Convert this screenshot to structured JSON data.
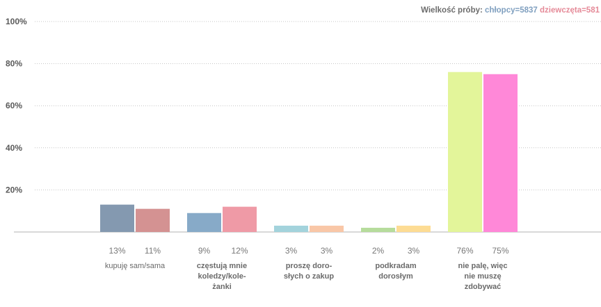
{
  "sample_note": {
    "label": "Wielkość próby:",
    "boys": "chłopcy=5837",
    "girls": "dziewczęta=581"
  },
  "chart_data": {
    "type": "bar",
    "ylim": [
      0,
      100
    ],
    "yticks": [
      "20%",
      "40%",
      "60%",
      "80%",
      "100%"
    ],
    "grid": true,
    "categories": [
      {
        "lines": [
          "kupuję sam/sama"
        ],
        "bold": false
      },
      {
        "lines": [
          "częstują mnie",
          "koledzy/kole-",
          "żanki"
        ],
        "bold": true
      },
      {
        "lines": [
          "proszę doro-",
          "słych o zakup"
        ],
        "bold": true
      },
      {
        "lines": [
          "podkradam",
          "dorosłym"
        ],
        "bold": true
      },
      {
        "lines": [
          "nie palę, więc",
          "nie muszę",
          "zdobywać"
        ],
        "bold": true
      }
    ],
    "series": [
      {
        "values": [
          13,
          9,
          3,
          2,
          76
        ],
        "labels": [
          "13%",
          "9%",
          "3%",
          "2%",
          "76%"
        ],
        "colors": [
          "#8499b0",
          "#87aac8",
          "#a3d3dc",
          "#b6dc9c",
          "#e3f59a"
        ]
      },
      {
        "values": [
          11,
          12,
          3,
          3,
          75
        ],
        "labels": [
          "11%",
          "12%",
          "3%",
          "3%",
          "75%"
        ],
        "colors": [
          "#d49292",
          "#ef9aa6",
          "#f9c7a7",
          "#fddc94",
          "#ff88d8"
        ]
      }
    ]
  }
}
